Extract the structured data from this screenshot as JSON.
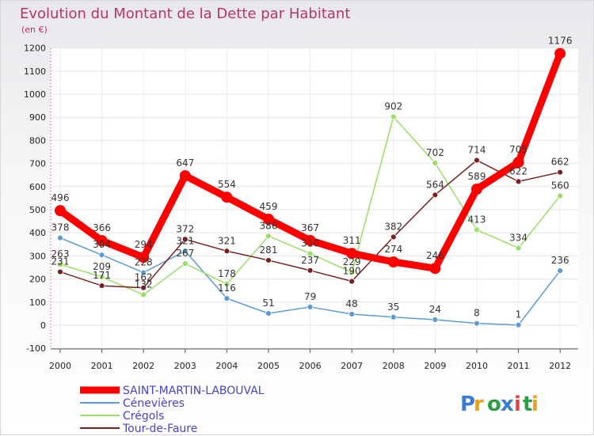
{
  "title": "Evolution du Montant de la Dette par Habitant",
  "subtitle": "(en €)",
  "logo": "Proxiti",
  "chart_data": {
    "type": "line",
    "title": "Evolution du Montant de la Dette par Habitant",
    "ylabel": "(en €)",
    "xlabel": "",
    "x": [
      "2000",
      "2001",
      "2002",
      "2003",
      "2004",
      "2005",
      "2006",
      "2007",
      "2008",
      "2009",
      "2010",
      "2011",
      "2012"
    ],
    "ylim": [
      -100,
      1200
    ],
    "yticks": [
      -100,
      0,
      100,
      200,
      300,
      400,
      500,
      600,
      700,
      800,
      900,
      1000,
      1100,
      1200
    ],
    "grid": true,
    "legend_position": "bottom-left",
    "series": [
      {
        "name": "SAINT-MARTIN-LABOUVAL",
        "color": "#ff0000",
        "values": [
          496,
          366,
          294,
          647,
          554,
          459,
          367,
          311,
          274,
          246,
          589,
          705,
          1176
        ]
      },
      {
        "name": "Cénevières",
        "color": "#5b9bd5",
        "values": [
          378,
          304,
          228,
          321,
          116,
          51,
          79,
          48,
          35,
          24,
          8,
          1,
          236
        ]
      },
      {
        "name": "Crégols",
        "color": "#99dd66",
        "values": [
          263,
          209,
          132,
          267,
          178,
          386,
          310,
          229,
          902,
          702,
          413,
          334,
          560
        ]
      },
      {
        "name": "Tour-de-Faure",
        "color": "#7a2020",
        "values": [
          231,
          171,
          162,
          372,
          321,
          281,
          237,
          190,
          382,
          564,
          714,
          622,
          662
        ]
      }
    ]
  }
}
